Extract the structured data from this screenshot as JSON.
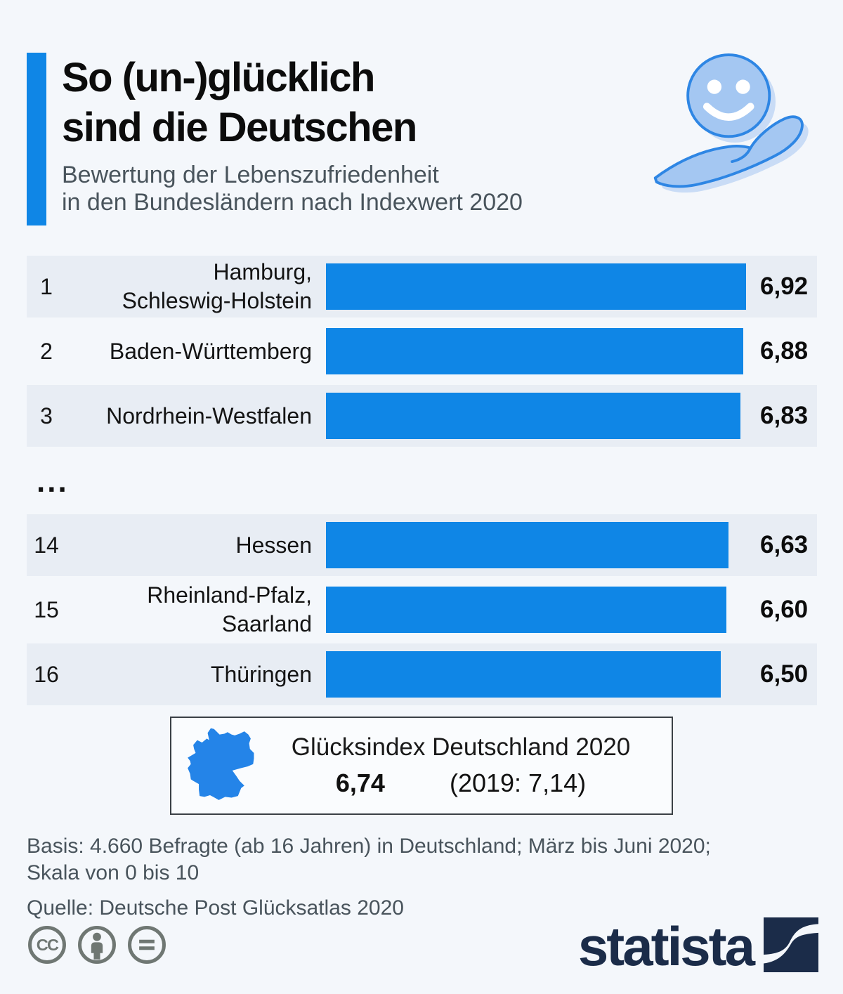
{
  "colors": {
    "accent_blue": "#0f86e6",
    "row_stripe": "#e8edf4",
    "page_background": "#f4f7fb",
    "brand_navy": "#1b2c49",
    "icon_light_blue": "#a4c7f2",
    "icon_stroke_blue": "#2e86e4"
  },
  "header": {
    "title_line1": "So (un-)glücklich",
    "title_line2": "sind die Deutschen",
    "subtitle_line1": "Bewertung der Lebenszufriedenheit",
    "subtitle_line2": "in den Bundesländern nach Indexwert 2020",
    "hero_icon": "smiley-in-hand-icon"
  },
  "chart_data": {
    "type": "bar",
    "orientation": "horizontal",
    "title": "So (un-)glücklich sind die Deutschen",
    "subtitle": "Bewertung der Lebenszufriedenheit in den Bundesländern nach Indexwert 2020",
    "value_range": [
      0,
      10
    ],
    "bar_color": "#0f86e6",
    "top_rows": [
      {
        "rank": "1",
        "label_lines": [
          "Hamburg,",
          "Schleswig-Holstein"
        ],
        "value": "6,92",
        "value_num": 6.92
      },
      {
        "rank": "2",
        "label_lines": [
          "Baden-Württemberg"
        ],
        "value": "6,88",
        "value_num": 6.88
      },
      {
        "rank": "3",
        "label_lines": [
          "Nordrhein-Westfalen"
        ],
        "value": "6,83",
        "value_num": 6.83
      }
    ],
    "ellipsis": "...",
    "bottom_rows": [
      {
        "rank": "14",
        "label_lines": [
          "Hessen"
        ],
        "value": "6,63",
        "value_num": 6.63
      },
      {
        "rank": "15",
        "label_lines": [
          "Rheinland-Pfalz,",
          "Saarland"
        ],
        "value": "6,60",
        "value_num": 6.6
      },
      {
        "rank": "16",
        "label_lines": [
          "Thüringen"
        ],
        "value": "6,50",
        "value_num": 6.5
      }
    ]
  },
  "summary_box": {
    "map_icon": "germany-map-icon",
    "title": "Glücksindex Deutschland 2020",
    "value": "6,74",
    "previous": "(2019: 7,14)"
  },
  "footnotes": {
    "basis_line1": "Basis: 4.660 Befragte (ab 16 Jahren) in Deutschland; März bis Juni 2020;",
    "basis_line2": "Skala von 0 bis 10",
    "source": "Quelle: Deutsche Post Glücksatlas 2020"
  },
  "footer": {
    "license_icons": [
      "cc-icon",
      "cc-by-person-icon",
      "cc-nd-equals-icon"
    ],
    "brand_text": "statista",
    "brand_mark": "statista-logo-icon"
  }
}
